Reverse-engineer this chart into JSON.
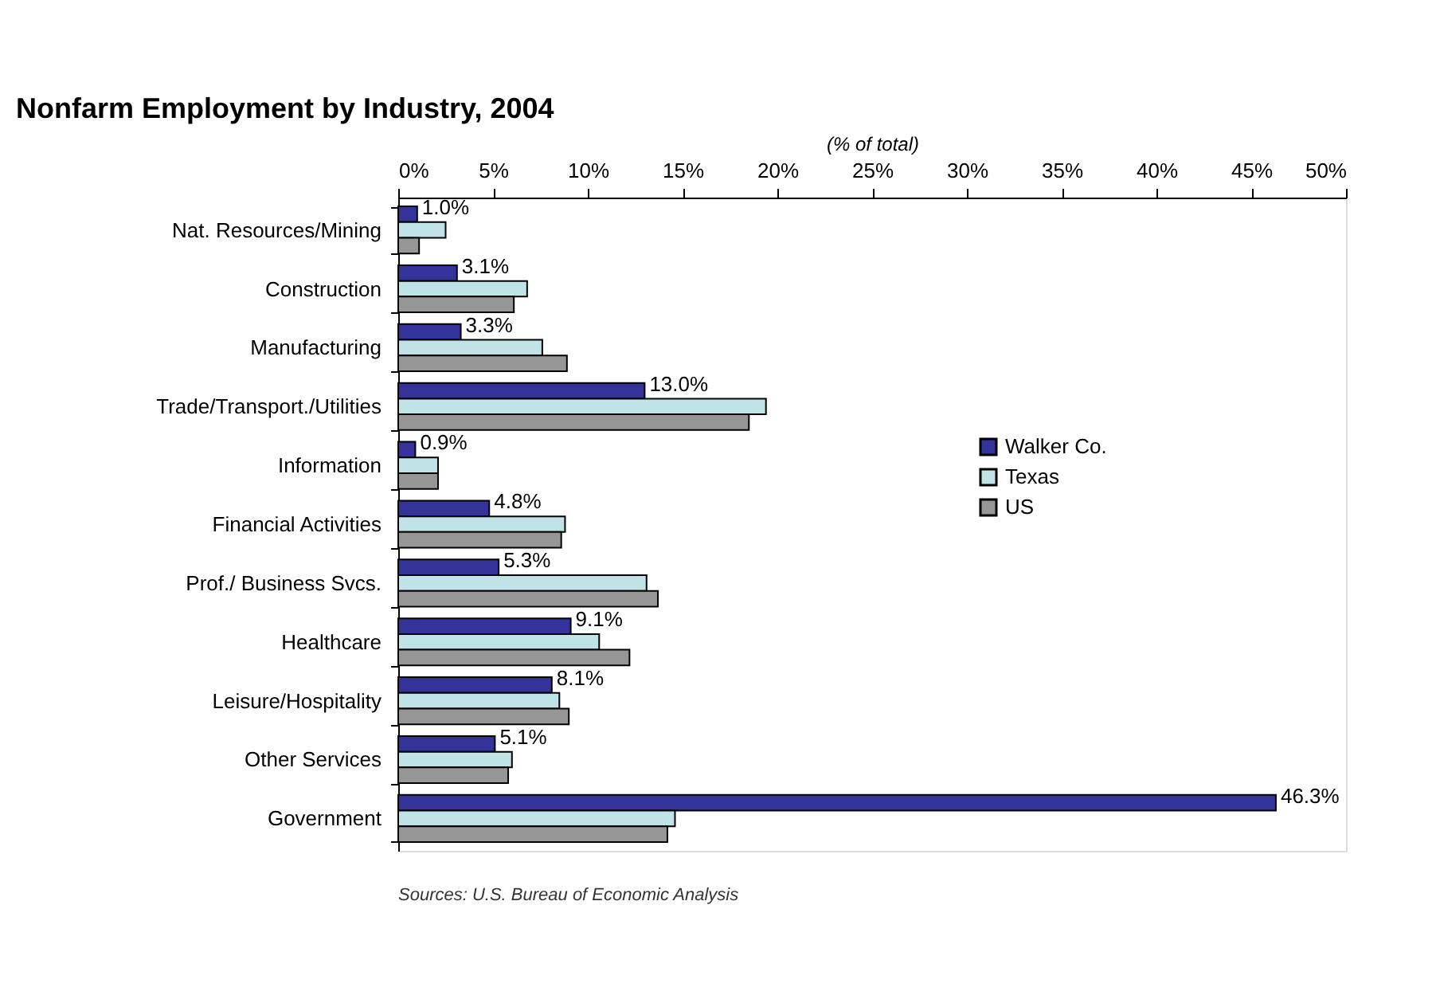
{
  "chart_data": {
    "type": "bar",
    "orientation": "horizontal",
    "title": "Nonfarm Employment by Industry, 2004",
    "xlabel": "(% of total)",
    "categories": [
      "Nat. Resources/Mining",
      "Construction",
      "Manufacturing",
      "Trade/Transport./Utilities",
      "Information",
      "Financial Activities",
      "Prof./ Business Svcs.",
      "Healthcare",
      "Leisure/Hospitality",
      "Other Services",
      "Government"
    ],
    "series": [
      {
        "name": "Walker Co.",
        "color": "#333399",
        "values": [
          1.0,
          3.1,
          3.3,
          13.0,
          0.9,
          4.8,
          5.3,
          9.1,
          8.1,
          5.1,
          46.3
        ],
        "value_labels": [
          "1.0%",
          "3.1%",
          "3.3%",
          "13.0%",
          "0.9%",
          "4.8%",
          "5.3%",
          "9.1%",
          "8.1%",
          "5.1%",
          "46.3%"
        ]
      },
      {
        "name": "Texas",
        "color": "#bfe3e6",
        "values": [
          2.5,
          6.8,
          7.6,
          19.4,
          2.1,
          8.8,
          13.1,
          10.6,
          8.5,
          6.0,
          14.6
        ]
      },
      {
        "name": "US",
        "color": "#969696",
        "values": [
          1.1,
          6.1,
          8.9,
          18.5,
          2.1,
          8.6,
          13.7,
          12.2,
          9.0,
          5.8,
          14.2
        ]
      }
    ],
    "xlim": [
      0,
      50
    ],
    "xticks": [
      {
        "value": 0,
        "label": "0%"
      },
      {
        "value": 5,
        "label": "5%"
      },
      {
        "value": 10,
        "label": "10%"
      },
      {
        "value": 15,
        "label": "15%"
      },
      {
        "value": 20,
        "label": "20%"
      },
      {
        "value": 25,
        "label": "25%"
      },
      {
        "value": 30,
        "label": "30%"
      },
      {
        "value": 35,
        "label": "35%"
      },
      {
        "value": 40,
        "label": "40%"
      },
      {
        "value": 45,
        "label": "45%"
      },
      {
        "value": 50,
        "label": "50%"
      }
    ],
    "grid": false,
    "legend": "top right",
    "annotations": [
      "Sources: U.S. Bureau of Economic Analysis"
    ]
  }
}
